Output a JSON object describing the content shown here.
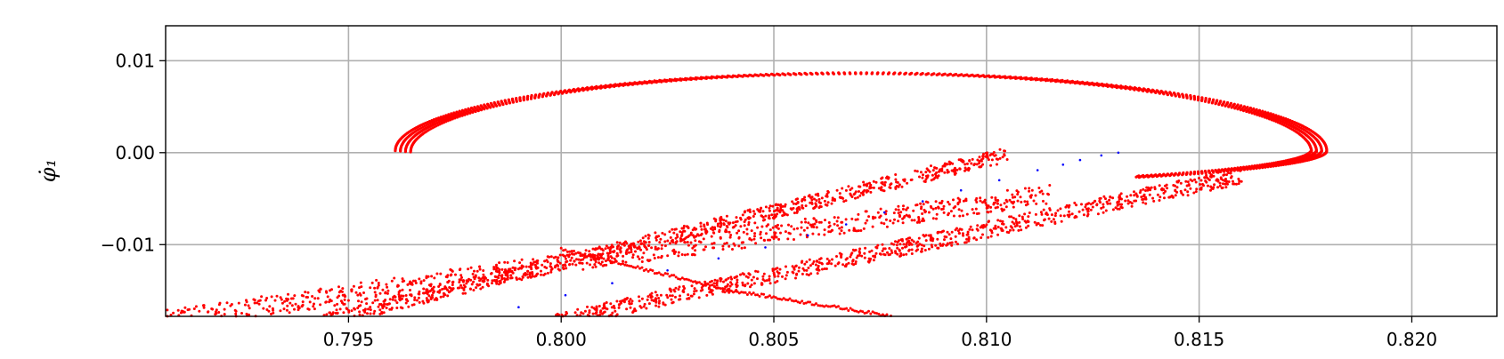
{
  "chart_data": {
    "type": "scatter",
    "title": "",
    "xlabel": "",
    "ylabel": "φ̇₁",
    "xlim": [
      0.7907,
      0.822
    ],
    "ylim": [
      -0.0178,
      0.0138
    ],
    "xticks": [
      0.795,
      0.8,
      0.805,
      0.81,
      0.815,
      0.82
    ],
    "xtick_labels": [
      "0.795",
      "0.800",
      "0.805",
      "0.810",
      "0.815",
      "0.820"
    ],
    "yticks": [
      0.01,
      0.0,
      -0.01
    ],
    "ytick_labels": [
      "0.01",
      "0.00",
      "−0.01"
    ],
    "grid": true,
    "colors": {
      "series_red": "#ff0000",
      "series_blue": "#0000ff",
      "grid": "#b0b0b0",
      "axes": "#000000"
    },
    "series": [
      {
        "color": "#ff0000",
        "description_points": "ellipse loop",
        "loop": {
          "center_x": 0.8071,
          "center_y": 0.0002,
          "x_left": 0.7961,
          "x_right": 0.818,
          "y_top": 0.0087,
          "y_bottom": -0.0034
        },
        "bands": [
          {
            "from": [
              0.794,
              -0.0187
            ],
            "to": [
              0.8105,
              -0.0002
            ],
            "spread": 0.0016
          },
          {
            "from": [
              0.7995,
              -0.0187
            ],
            "to": [
              0.816,
              -0.0025
            ],
            "spread": 0.0018
          },
          {
            "from": [
              0.79,
              -0.0187
            ],
            "to": [
              0.8115,
              -0.0045
            ],
            "spread": 0.0022
          }
        ],
        "curve": {
          "points": [
            [
              0.8,
              -0.0105
            ],
            [
              0.804,
              -0.015
            ],
            [
              0.8078,
              -0.0178
            ]
          ]
        }
      },
      {
        "color": "#0000ff",
        "points": [
          [
            0.8131,
            0.0
          ],
          [
            0.8127,
            -0.0003
          ],
          [
            0.8122,
            -0.0008
          ],
          [
            0.8118,
            -0.0013
          ],
          [
            0.8112,
            -0.0019
          ],
          [
            0.8103,
            -0.003
          ],
          [
            0.8094,
            -0.0041
          ],
          [
            0.8085,
            -0.0053
          ],
          [
            0.8076,
            -0.0065
          ],
          [
            0.8067,
            -0.0078
          ],
          [
            0.8058,
            -0.009
          ],
          [
            0.8048,
            -0.0103
          ],
          [
            0.8037,
            -0.0115
          ],
          [
            0.8025,
            -0.0128
          ],
          [
            0.8012,
            -0.0142
          ],
          [
            0.8001,
            -0.0155
          ],
          [
            0.799,
            -0.0168
          ],
          [
            0.7978,
            -0.018
          ]
        ]
      }
    ]
  }
}
